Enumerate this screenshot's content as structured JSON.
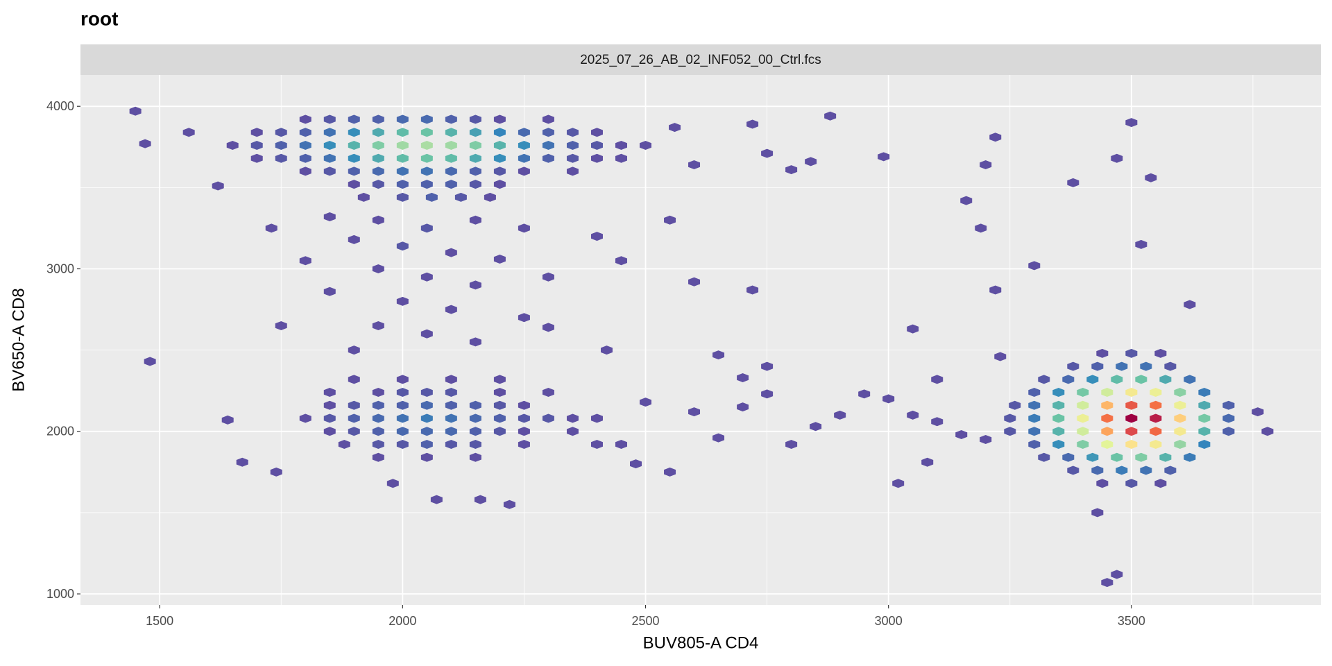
{
  "chart_data": {
    "type": "hexbin",
    "title": "root",
    "facet": "2025_07_26_AB_02_INF052_00_Ctrl.fcs",
    "x_label": "BUV805-A CD4",
    "y_label": "BV650-A CD8",
    "xlim": [
      1337,
      3890
    ],
    "ylim": [
      932,
      4193
    ],
    "xticks": [
      1500,
      2000,
      2500,
      3000,
      3500
    ],
    "yticks": [
      1000,
      2000,
      3000,
      4000
    ],
    "xminor": [
      1750,
      2250,
      2750,
      3250,
      3750
    ],
    "yminor": [
      1500,
      2500,
      3500
    ],
    "grid": true,
    "palette": [
      "#5e4fa2",
      "#3288bd",
      "#66c2a5",
      "#abdda4",
      "#e6f598",
      "#fee08b",
      "#fdae61",
      "#f46d43",
      "#d53e4f",
      "#9e0142"
    ],
    "hexes": [
      [
        3250,
        2080,
        2
      ],
      [
        3300,
        2080,
        6
      ],
      [
        3350,
        2080,
        14
      ],
      [
        3400,
        2080,
        28
      ],
      [
        3450,
        2080,
        45
      ],
      [
        3500,
        2080,
        58
      ],
      [
        3550,
        2080,
        55
      ],
      [
        3600,
        2080,
        35
      ],
      [
        3650,
        2080,
        15
      ],
      [
        3700,
        2080,
        4
      ],
      [
        3250,
        2000,
        2
      ],
      [
        3300,
        2000,
        5
      ],
      [
        3350,
        2000,
        12
      ],
      [
        3400,
        2000,
        24
      ],
      [
        3450,
        2000,
        40
      ],
      [
        3500,
        2000,
        50
      ],
      [
        3550,
        2000,
        46
      ],
      [
        3600,
        2000,
        30
      ],
      [
        3650,
        2000,
        12
      ],
      [
        3700,
        2000,
        3
      ],
      [
        3260,
        2160,
        2
      ],
      [
        3300,
        2160,
        5
      ],
      [
        3350,
        2160,
        12
      ],
      [
        3400,
        2160,
        24
      ],
      [
        3450,
        2160,
        38
      ],
      [
        3500,
        2160,
        48
      ],
      [
        3550,
        2160,
        45
      ],
      [
        3600,
        2160,
        28
      ],
      [
        3650,
        2160,
        11
      ],
      [
        3700,
        2160,
        3
      ],
      [
        3300,
        1920,
        3
      ],
      [
        3350,
        1920,
        8
      ],
      [
        3400,
        1920,
        16
      ],
      [
        3450,
        1920,
        26
      ],
      [
        3500,
        1920,
        32
      ],
      [
        3550,
        1920,
        30
      ],
      [
        3600,
        1920,
        18
      ],
      [
        3650,
        1920,
        7
      ],
      [
        3300,
        2240,
        3
      ],
      [
        3350,
        2240,
        8
      ],
      [
        3400,
        2240,
        15
      ],
      [
        3450,
        2240,
        24
      ],
      [
        3500,
        2240,
        30
      ],
      [
        3550,
        2240,
        28
      ],
      [
        3600,
        2240,
        17
      ],
      [
        3650,
        2240,
        6
      ],
      [
        3320,
        1840,
        2
      ],
      [
        3370,
        1840,
        4
      ],
      [
        3420,
        1840,
        9
      ],
      [
        3470,
        1840,
        14
      ],
      [
        3520,
        1840,
        16
      ],
      [
        3570,
        1840,
        12
      ],
      [
        3620,
        1840,
        6
      ],
      [
        3320,
        2320,
        2
      ],
      [
        3370,
        2320,
        4
      ],
      [
        3420,
        2320,
        8
      ],
      [
        3470,
        2320,
        13
      ],
      [
        3520,
        2320,
        14
      ],
      [
        3570,
        2320,
        11
      ],
      [
        3620,
        2320,
        5
      ],
      [
        3380,
        1760,
        2
      ],
      [
        3430,
        1760,
        4
      ],
      [
        3480,
        1760,
        6
      ],
      [
        3530,
        1760,
        5
      ],
      [
        3580,
        1760,
        3
      ],
      [
        3380,
        2400,
        2
      ],
      [
        3430,
        2400,
        3
      ],
      [
        3480,
        2400,
        5
      ],
      [
        3530,
        2400,
        5
      ],
      [
        3580,
        2400,
        2
      ],
      [
        3440,
        1680,
        1
      ],
      [
        3500,
        1680,
        2
      ],
      [
        3560,
        1680,
        1
      ],
      [
        3440,
        2480,
        1
      ],
      [
        3500,
        2480,
        2
      ],
      [
        3560,
        2480,
        1
      ],
      [
        3430,
        1500,
        1
      ],
      [
        3450,
        1070,
        1
      ],
      [
        3470,
        1120,
        1
      ],
      [
        3500,
        3900,
        1
      ],
      [
        3470,
        3680,
        1
      ],
      [
        3380,
        3530,
        1
      ],
      [
        3540,
        3560,
        1
      ],
      [
        3200,
        3640,
        1
      ],
      [
        3220,
        3810,
        1
      ],
      [
        3190,
        3250,
        1
      ],
      [
        3160,
        3420,
        1
      ],
      [
        3220,
        2870,
        1
      ],
      [
        3520,
        3150,
        1
      ],
      [
        3300,
        3020,
        1
      ],
      [
        3620,
        2780,
        1
      ],
      [
        3780,
        2000,
        1
      ],
      [
        3760,
        2120,
        1
      ],
      [
        3230,
        2460,
        1
      ],
      [
        1650,
        3760,
        1
      ],
      [
        1700,
        3760,
        2
      ],
      [
        1750,
        3760,
        3
      ],
      [
        1800,
        3760,
        5
      ],
      [
        1850,
        3760,
        8
      ],
      [
        1900,
        3760,
        12
      ],
      [
        1950,
        3760,
        16
      ],
      [
        2000,
        3760,
        19
      ],
      [
        2050,
        3760,
        20
      ],
      [
        2100,
        3760,
        19
      ],
      [
        2150,
        3760,
        16
      ],
      [
        2200,
        3760,
        12
      ],
      [
        2250,
        3760,
        8
      ],
      [
        2300,
        3760,
        5
      ],
      [
        2350,
        3760,
        3
      ],
      [
        2400,
        3760,
        2
      ],
      [
        2450,
        3760,
        1
      ],
      [
        2500,
        3760,
        1
      ],
      [
        1700,
        3680,
        1
      ],
      [
        1750,
        3680,
        2
      ],
      [
        1800,
        3680,
        3
      ],
      [
        1850,
        3680,
        5
      ],
      [
        1900,
        3680,
        8
      ],
      [
        1950,
        3680,
        11
      ],
      [
        2000,
        3680,
        13
      ],
      [
        2050,
        3680,
        14
      ],
      [
        2100,
        3680,
        13
      ],
      [
        2150,
        3680,
        11
      ],
      [
        2200,
        3680,
        8
      ],
      [
        2250,
        3680,
        5
      ],
      [
        2300,
        3680,
        3
      ],
      [
        2350,
        3680,
        2
      ],
      [
        2400,
        3680,
        1
      ],
      [
        2450,
        3680,
        1
      ],
      [
        1700,
        3840,
        1
      ],
      [
        1750,
        3840,
        2
      ],
      [
        1800,
        3840,
        3
      ],
      [
        1850,
        3840,
        5
      ],
      [
        1900,
        3840,
        8
      ],
      [
        1950,
        3840,
        11
      ],
      [
        2000,
        3840,
        13
      ],
      [
        2050,
        3840,
        14
      ],
      [
        2100,
        3840,
        12
      ],
      [
        2150,
        3840,
        10
      ],
      [
        2200,
        3840,
        7
      ],
      [
        2250,
        3840,
        4
      ],
      [
        2300,
        3840,
        3
      ],
      [
        2350,
        3840,
        2
      ],
      [
        2400,
        3840,
        1
      ],
      [
        1800,
        3600,
        1
      ],
      [
        1850,
        3600,
        2
      ],
      [
        1900,
        3600,
        3
      ],
      [
        1950,
        3600,
        4
      ],
      [
        2000,
        3600,
        5
      ],
      [
        2050,
        3600,
        5
      ],
      [
        2100,
        3600,
        4
      ],
      [
        2150,
        3600,
        3
      ],
      [
        2200,
        3600,
        2
      ],
      [
        2250,
        3600,
        1
      ],
      [
        2350,
        3600,
        1
      ],
      [
        1800,
        3920,
        1
      ],
      [
        1850,
        3920,
        2
      ],
      [
        1900,
        3920,
        3
      ],
      [
        1950,
        3920,
        3
      ],
      [
        2000,
        3920,
        4
      ],
      [
        2050,
        3920,
        4
      ],
      [
        2100,
        3920,
        3
      ],
      [
        2150,
        3920,
        2
      ],
      [
        2200,
        3920,
        1
      ],
      [
        2300,
        3920,
        1
      ],
      [
        1900,
        3520,
        1
      ],
      [
        1950,
        3520,
        2
      ],
      [
        2000,
        3520,
        3
      ],
      [
        2050,
        3520,
        3
      ],
      [
        2100,
        3520,
        3
      ],
      [
        2150,
        3520,
        2
      ],
      [
        2200,
        3520,
        1
      ],
      [
        1920,
        3440,
        1
      ],
      [
        2000,
        3440,
        2
      ],
      [
        2060,
        3440,
        3
      ],
      [
        2120,
        3440,
        2
      ],
      [
        2180,
        3440,
        1
      ],
      [
        1450,
        3970,
        1
      ],
      [
        1470,
        3770,
        1
      ],
      [
        1560,
        3840,
        1
      ],
      [
        2560,
        3870,
        1
      ],
      [
        2600,
        3640,
        1
      ],
      [
        2720,
        3890,
        1
      ],
      [
        2750,
        3710,
        1
      ],
      [
        2880,
        3940,
        1
      ],
      [
        2990,
        3690,
        1
      ],
      [
        2800,
        3610,
        1
      ],
      [
        2840,
        3660,
        1
      ],
      [
        1620,
        3510,
        1
      ],
      [
        1730,
        3250,
        1
      ],
      [
        1850,
        3320,
        1
      ],
      [
        1950,
        3300,
        1
      ],
      [
        2050,
        3250,
        2
      ],
      [
        2150,
        3300,
        1
      ],
      [
        2250,
        3250,
        1
      ],
      [
        1900,
        3180,
        1
      ],
      [
        2000,
        3140,
        2
      ],
      [
        2100,
        3100,
        1
      ],
      [
        2200,
        3060,
        1
      ],
      [
        1800,
        3050,
        1
      ],
      [
        1950,
        3000,
        1
      ],
      [
        2050,
        2950,
        1
      ],
      [
        2150,
        2900,
        1
      ],
      [
        2300,
        2950,
        1
      ],
      [
        1850,
        2860,
        1
      ],
      [
        2000,
        2800,
        1
      ],
      [
        2100,
        2750,
        1
      ],
      [
        2250,
        2700,
        1
      ],
      [
        1950,
        2650,
        1
      ],
      [
        2050,
        2600,
        1
      ],
      [
        2150,
        2550,
        1
      ],
      [
        2300,
        2640,
        1
      ],
      [
        1750,
        2650,
        1
      ],
      [
        1900,
        2500,
        1
      ],
      [
        2450,
        3050,
        1
      ],
      [
        2550,
        3300,
        1
      ],
      [
        2400,
        3200,
        1
      ],
      [
        2600,
        2920,
        1
      ],
      [
        2720,
        2870,
        1
      ],
      [
        1480,
        2430,
        1
      ],
      [
        1800,
        2080,
        1
      ],
      [
        1850,
        2080,
        2
      ],
      [
        1900,
        2080,
        3
      ],
      [
        1950,
        2080,
        4
      ],
      [
        2000,
        2080,
        5
      ],
      [
        2050,
        2080,
        6
      ],
      [
        2100,
        2080,
        5
      ],
      [
        2150,
        2080,
        4
      ],
      [
        2200,
        2080,
        3
      ],
      [
        2250,
        2080,
        2
      ],
      [
        2300,
        2080,
        2
      ],
      [
        2350,
        2080,
        1
      ],
      [
        2400,
        2080,
        1
      ],
      [
        1850,
        2000,
        1
      ],
      [
        1900,
        2000,
        2
      ],
      [
        1950,
        2000,
        3
      ],
      [
        2000,
        2000,
        4
      ],
      [
        2050,
        2000,
        4
      ],
      [
        2100,
        2000,
        4
      ],
      [
        2150,
        2000,
        3
      ],
      [
        2200,
        2000,
        2
      ],
      [
        2250,
        2000,
        1
      ],
      [
        2350,
        2000,
        1
      ],
      [
        1850,
        2160,
        1
      ],
      [
        1900,
        2160,
        2
      ],
      [
        1950,
        2160,
        3
      ],
      [
        2000,
        2160,
        3
      ],
      [
        2050,
        2160,
        4
      ],
      [
        2100,
        2160,
        3
      ],
      [
        2150,
        2160,
        3
      ],
      [
        2200,
        2160,
        2
      ],
      [
        2250,
        2160,
        1
      ],
      [
        1880,
        1920,
        1
      ],
      [
        1950,
        1920,
        2
      ],
      [
        2000,
        1920,
        2
      ],
      [
        2050,
        1920,
        3
      ],
      [
        2100,
        1920,
        2
      ],
      [
        2150,
        1920,
        2
      ],
      [
        2250,
        1920,
        1
      ],
      [
        2400,
        1920,
        1
      ],
      [
        1850,
        2240,
        1
      ],
      [
        1950,
        2240,
        1
      ],
      [
        2000,
        2240,
        2
      ],
      [
        2050,
        2240,
        2
      ],
      [
        2100,
        2240,
        2
      ],
      [
        2200,
        2240,
        1
      ],
      [
        2300,
        2240,
        1
      ],
      [
        1950,
        1840,
        1
      ],
      [
        2050,
        1840,
        1
      ],
      [
        2150,
        1840,
        1
      ],
      [
        1900,
        2320,
        1
      ],
      [
        2000,
        2320,
        1
      ],
      [
        2100,
        2320,
        1
      ],
      [
        2200,
        2320,
        1
      ],
      [
        1640,
        2070,
        1
      ],
      [
        1670,
        1810,
        1
      ],
      [
        1740,
        1750,
        1
      ],
      [
        1980,
        1680,
        1
      ],
      [
        2070,
        1580,
        1
      ],
      [
        2160,
        1580,
        1
      ],
      [
        2220,
        1550,
        1
      ],
      [
        2480,
        1800,
        1
      ],
      [
        2550,
        1750,
        1
      ],
      [
        2500,
        2180,
        1
      ],
      [
        2600,
        2120,
        1
      ],
      [
        2700,
        2150,
        1
      ],
      [
        2750,
        2230,
        1
      ],
      [
        2850,
        2030,
        1
      ],
      [
        2900,
        2100,
        1
      ],
      [
        2950,
        2230,
        1
      ],
      [
        3000,
        2200,
        1
      ],
      [
        3020,
        1680,
        1
      ],
      [
        3050,
        2100,
        1
      ],
      [
        3100,
        2060,
        1
      ],
      [
        3150,
        1980,
        1
      ],
      [
        3200,
        1950,
        1
      ],
      [
        2650,
        1960,
        1
      ],
      [
        2800,
        1920,
        1
      ],
      [
        2450,
        1920,
        1
      ],
      [
        2420,
        2500,
        1
      ],
      [
        2650,
        2470,
        1
      ],
      [
        2700,
        2330,
        1
      ],
      [
        2750,
        2400,
        1
      ],
      [
        3050,
        2630,
        1
      ],
      [
        3100,
        2320,
        1
      ],
      [
        3080,
        1810,
        1
      ]
    ]
  }
}
